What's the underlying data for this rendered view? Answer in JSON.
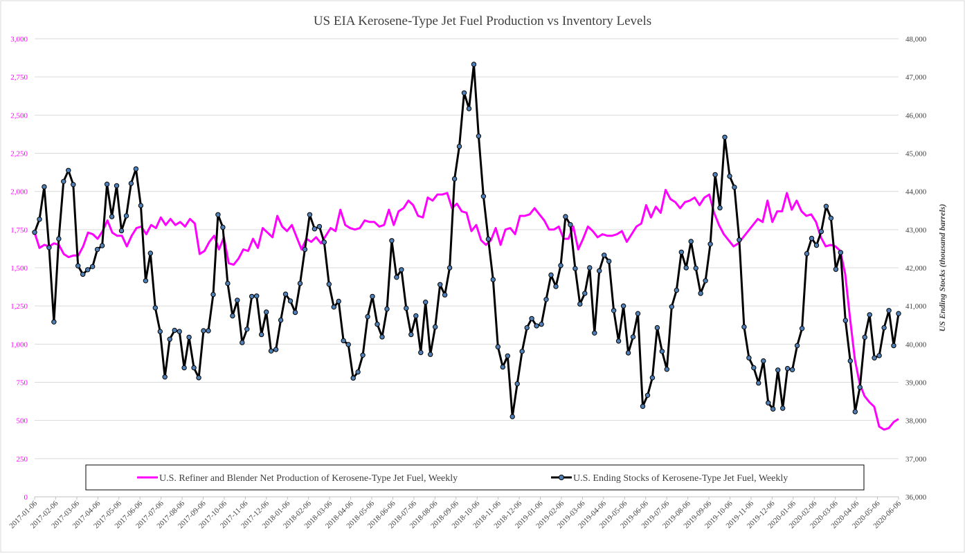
{
  "chart_data": {
    "type": "line",
    "title": "US EIA Kerosene-Type Jet Fuel Production vs Inventory Levels",
    "ylabel_right": "US Ending Stocks  (thousand barrels)",
    "ylim_left": [
      0,
      3000
    ],
    "yticks_left": [
      "0",
      "250",
      "500",
      "750",
      "1,000",
      "1,250",
      "1,500",
      "1,750",
      "2,000",
      "2,250",
      "2,500",
      "2,750",
      "3,000"
    ],
    "ylim_right": [
      36000,
      48000
    ],
    "yticks_right": [
      "36,000",
      "37,000",
      "38,000",
      "39,000",
      "40,000",
      "41,000",
      "42,000",
      "43,000",
      "44,000",
      "45,000",
      "46,000",
      "47,000",
      "48,000"
    ],
    "x_start": "2017-01-06",
    "x_end": "2020-06-06",
    "x_tick_labels": [
      "2017-01-06",
      "2017-02-06",
      "2017-03-06",
      "2017-04-06",
      "2017-05-06",
      "2017-06-06",
      "2017-07-06",
      "2017-08-06",
      "2017-09-06",
      "2017-10-06",
      "2017-11-06",
      "2017-12-06",
      "2018-01-06",
      "2018-02-06",
      "2018-03-06",
      "2018-04-06",
      "2018-05-06",
      "2018-06-06",
      "2018-07-06",
      "2018-08-06",
      "2018-09-06",
      "2018-10-06",
      "2018-11-06",
      "2018-12-06",
      "2019-01-06",
      "2019-02-06",
      "2019-03-06",
      "2019-04-06",
      "2019-05-06",
      "2019-06-06",
      "2019-07-06",
      "2019-08-06",
      "2019-09-06",
      "2019-10-06",
      "2019-11-06",
      "2019-12-06",
      "2020-01-06",
      "2020-02-06",
      "2020-03-06",
      "2020-04-06",
      "2020-05-06",
      "2020-06-06"
    ],
    "grid": true,
    "legend_position": "bottom-center",
    "series": [
      {
        "name": "U.S. Refiner and Blender Net Production of Kerosene-Type Jet Fuel, Weekly",
        "axis": "left",
        "color": "#ff00ff",
        "marker": "none",
        "values": [
          1730,
          1630,
          1650,
          1640,
          1660,
          1650,
          1590,
          1570,
          1580,
          1580,
          1640,
          1730,
          1720,
          1690,
          1740,
          1810,
          1730,
          1710,
          1710,
          1640,
          1710,
          1760,
          1770,
          1720,
          1780,
          1760,
          1830,
          1780,
          1820,
          1780,
          1800,
          1770,
          1820,
          1790,
          1590,
          1610,
          1670,
          1710,
          1620,
          1700,
          1530,
          1520,
          1560,
          1620,
          1610,
          1690,
          1630,
          1760,
          1730,
          1700,
          1840,
          1770,
          1740,
          1780,
          1700,
          1620,
          1690,
          1670,
          1700,
          1660,
          1710,
          1760,
          1740,
          1880,
          1780,
          1760,
          1750,
          1760,
          1810,
          1800,
          1800,
          1770,
          1780,
          1880,
          1780,
          1870,
          1890,
          1940,
          1910,
          1840,
          1830,
          1960,
          1940,
          1980,
          1980,
          1990,
          1890,
          1920,
          1870,
          1860,
          1740,
          1780,
          1680,
          1650,
          1680,
          1760,
          1650,
          1750,
          1760,
          1720,
          1840,
          1840,
          1850,
          1890,
          1850,
          1810,
          1750,
          1750,
          1770,
          1690,
          1690,
          1770,
          1620,
          1690,
          1770,
          1740,
          1700,
          1720,
          1710,
          1710,
          1720,
          1740,
          1670,
          1720,
          1770,
          1790,
          1910,
          1830,
          1900,
          1860,
          2010,
          1950,
          1930,
          1890,
          1930,
          1940,
          1960,
          1910,
          1960,
          1980,
          1860,
          1780,
          1720,
          1680,
          1640,
          1660,
          1700,
          1740,
          1780,
          1820,
          1800,
          1940,
          1800,
          1870,
          1870,
          1990,
          1880,
          1940,
          1870,
          1840,
          1850,
          1800,
          1700,
          1640,
          1650,
          1640,
          1610,
          1460,
          1170,
          900,
          740,
          660,
          620,
          590,
          460,
          440,
          450,
          490,
          510
        ]
      },
      {
        "name": "U.S. Ending Stocks of Kerosene-Type Jet Fuel, Weekly",
        "axis": "right",
        "color": "#000000",
        "marker": "circle",
        "values": [
          42930,
          43270,
          44120,
          42530,
          40580,
          42760,
          44260,
          44550,
          44180,
          42050,
          41830,
          41950,
          42030,
          42480,
          42580,
          44190,
          43340,
          44150,
          42970,
          43360,
          44210,
          44590,
          43630,
          41660,
          42380,
          40950,
          40330,
          39140,
          40130,
          40360,
          40330,
          39380,
          40180,
          39380,
          39120,
          40350,
          40350,
          41300,
          43390,
          43060,
          41590,
          40740,
          41150,
          40040,
          40390,
          41250,
          41260,
          40250,
          40840,
          39820,
          39860,
          40630,
          41310,
          41130,
          40830,
          41590,
          42480,
          43390,
          43020,
          43080,
          42670,
          41570,
          40970,
          41120,
          40090,
          39990,
          39110,
          39270,
          39710,
          40720,
          41250,
          40520,
          40190,
          40920,
          42710,
          41750,
          41950,
          40940,
          40250,
          40740,
          39780,
          41100,
          39730,
          40450,
          41560,
          41290,
          42000,
          44330,
          45180,
          46580,
          46170,
          47330,
          45450,
          43870,
          42750,
          41690,
          39930,
          39400,
          39690,
          38100,
          38960,
          39810,
          40430,
          40670,
          40480,
          40520,
          41170,
          41810,
          41510,
          42060,
          43340,
          43130,
          41980,
          41050,
          41330,
          42000,
          40290,
          41920,
          42330,
          42170,
          40880,
          40080,
          41000,
          39770,
          40190,
          40800,
          38370,
          38660,
          39120,
          40430,
          39810,
          39340,
          40980,
          41410,
          42410,
          42000,
          42690,
          41990,
          41330,
          41660,
          42620,
          44440,
          43570,
          45420,
          44400,
          44110,
          42730,
          40450,
          39640,
          39380,
          38980,
          39560,
          38460,
          38300,
          39320,
          38320,
          39360,
          39330,
          39960,
          40410,
          42370,
          42770,
          42590,
          42950,
          43610,
          43300,
          41960,
          42400,
          40620,
          39560,
          38230,
          38870,
          40180,
          40770,
          39640,
          39700,
          40430,
          40880,
          39960,
          40800
        ]
      }
    ]
  }
}
